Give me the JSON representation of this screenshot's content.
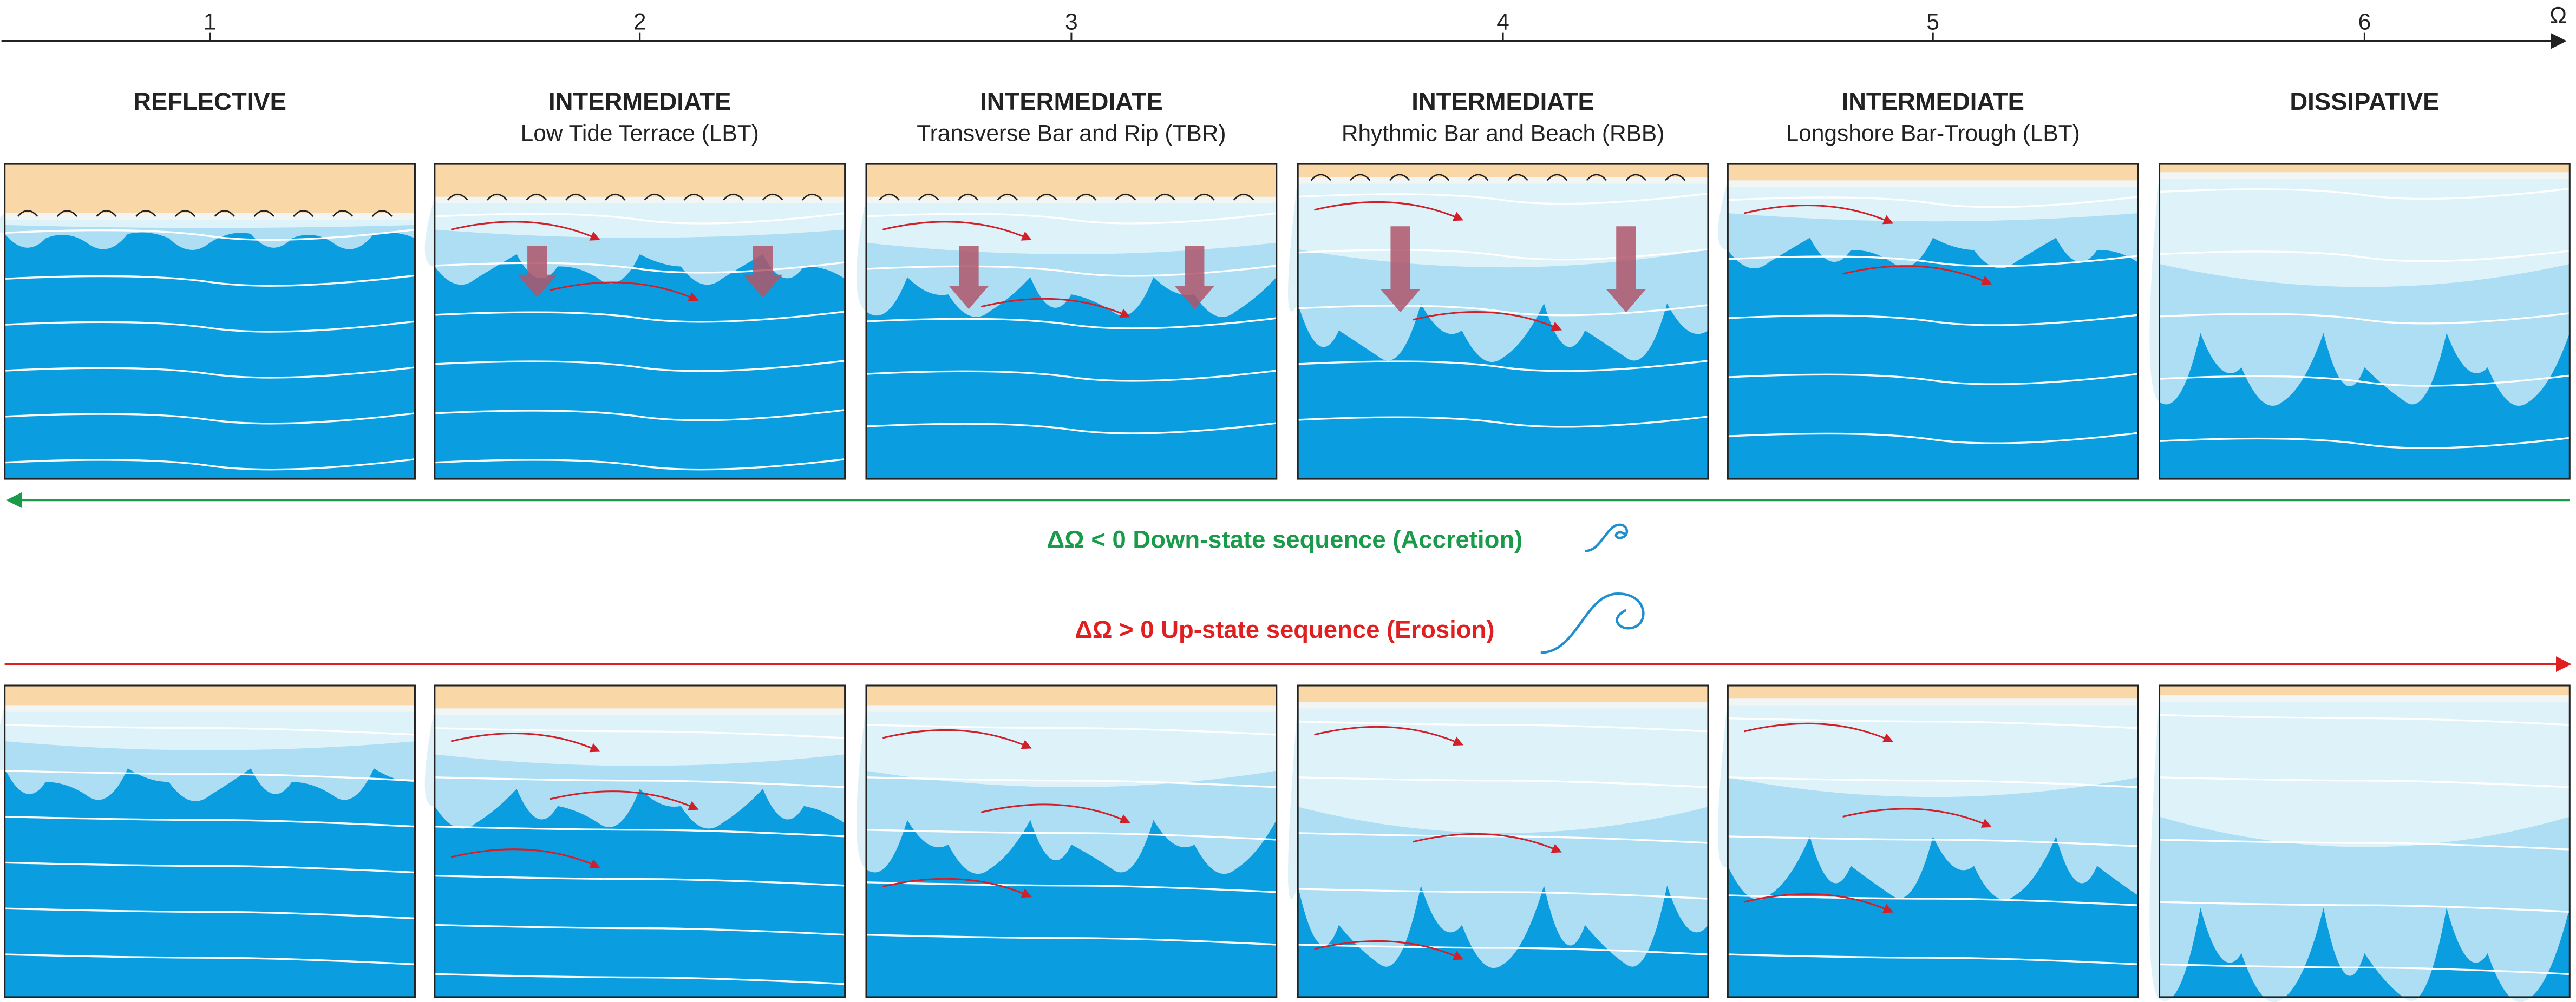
{
  "axis": {
    "ticks": [
      "1",
      "2",
      "3",
      "4",
      "5",
      "6"
    ],
    "end_label": "Ω"
  },
  "columns": [
    {
      "title": "REFLECTIVE"
    },
    {
      "title": "INTERMEDIATE",
      "subtitle": "Low Tide Terrace (LBT)"
    },
    {
      "title": "INTERMEDIATE",
      "subtitle": "Transverse Bar and Rip (TBR)"
    },
    {
      "title": "INTERMEDIATE",
      "subtitle": "Rhythmic Bar and Beach (RBB)"
    },
    {
      "title": "INTERMEDIATE",
      "subtitle": "Longshore Bar-Trough (LBT)"
    },
    {
      "title": "DISSIPATIVE"
    }
  ],
  "sequences": {
    "down": "ΔΩ < 0 Down-state sequence (Accretion)",
    "up": "ΔΩ > 0 Up-state sequence (Erosion)"
  }
}
